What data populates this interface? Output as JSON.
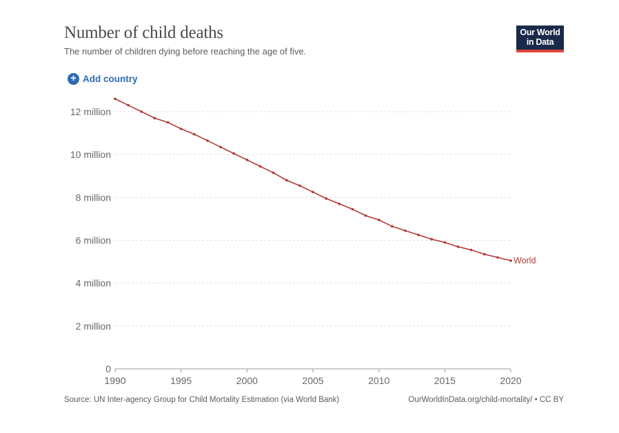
{
  "header": {
    "title": "Number of child deaths",
    "subtitle": "The number of children dying before reaching the age of five.",
    "logo_line1": "Our World",
    "logo_line2": "in Data"
  },
  "controls": {
    "add_country_label": "Add country"
  },
  "footer": {
    "source": "Source: UN Inter-agency Group for Child Mortality Estimation (via World Bank)",
    "link": "OurWorldInData.org/child-mortality/ • CC BY"
  },
  "colors": {
    "series": "#b13a36",
    "accent": "#2c6bb0",
    "logo_bg": "#1a2a4a",
    "logo_bar": "#e0443a"
  },
  "chart_data": {
    "type": "line",
    "title": "Number of child deaths",
    "subtitle": "The number of children dying before reaching the age of five.",
    "xlabel": "",
    "ylabel": "",
    "xlim": [
      1990,
      2020
    ],
    "ylim": [
      0,
      12000000
    ],
    "yticks": [
      0,
      2000000,
      4000000,
      6000000,
      8000000,
      10000000,
      12000000
    ],
    "ytick_labels": [
      "0",
      "2 million",
      "4 million",
      "6 million",
      "8 million",
      "10 million",
      "12 million"
    ],
    "xticks": [
      1990,
      1995,
      2000,
      2005,
      2010,
      2015,
      2020
    ],
    "xtick_labels": [
      "1990",
      "1995",
      "2000",
      "2005",
      "2010",
      "2015",
      "2020"
    ],
    "grid": "horizontal dashed",
    "legend": "inline label at line end",
    "series": [
      {
        "name": "World",
        "x": [
          1990,
          1991,
          1992,
          1993,
          1994,
          1995,
          1996,
          1997,
          1998,
          1999,
          2000,
          2001,
          2002,
          2003,
          2004,
          2005,
          2006,
          2007,
          2008,
          2009,
          2010,
          2011,
          2012,
          2013,
          2014,
          2015,
          2016,
          2017,
          2018,
          2019,
          2020
        ],
        "values": [
          12600000,
          12300000,
          12000000,
          11700000,
          11500000,
          11200000,
          10950000,
          10650000,
          10350000,
          10050000,
          9750000,
          9450000,
          9150000,
          8800000,
          8550000,
          8250000,
          7950000,
          7700000,
          7450000,
          7150000,
          6950000,
          6650000,
          6450000,
          6250000,
          6050000,
          5900000,
          5700000,
          5550000,
          5350000,
          5200000,
          5050000
        ]
      }
    ]
  }
}
